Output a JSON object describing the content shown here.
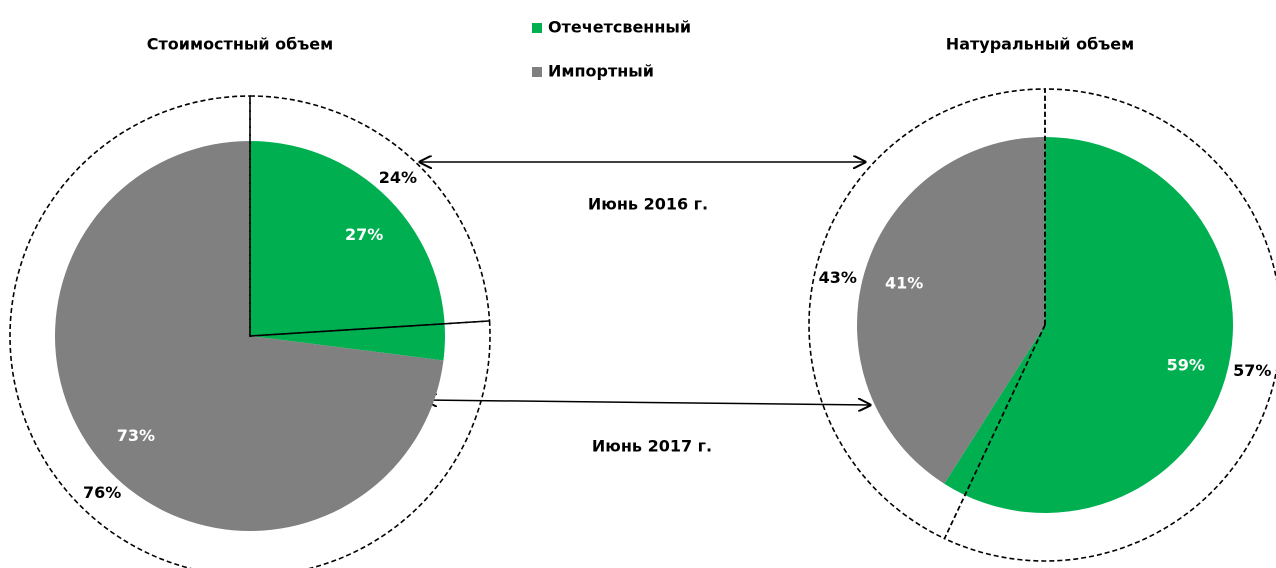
{
  "chart_data": {
    "type": "pie",
    "categories": [
      "Отечетсвенный",
      "Импортный"
    ],
    "colors": [
      "#00b050",
      "#808080"
    ],
    "rings": [
      "Июнь 2016 г.",
      "Июнь 2017 г."
    ],
    "charts": [
      {
        "title": "Стоимостный объем",
        "series": [
          {
            "values": [
              24,
              76
            ],
            "value_labels": [
              "24%",
              "76%"
            ]
          },
          {
            "values": [
              27,
              73
            ],
            "value_labels": [
              "27%",
              "73%"
            ]
          }
        ]
      },
      {
        "title": "Натуральный объем",
        "series": [
          {
            "values": [
              57,
              43
            ],
            "value_labels": [
              "57%",
              "43%"
            ]
          },
          {
            "values": [
              59,
              41
            ],
            "value_labels": [
              "59%",
              "41%"
            ]
          }
        ]
      }
    ]
  }
}
